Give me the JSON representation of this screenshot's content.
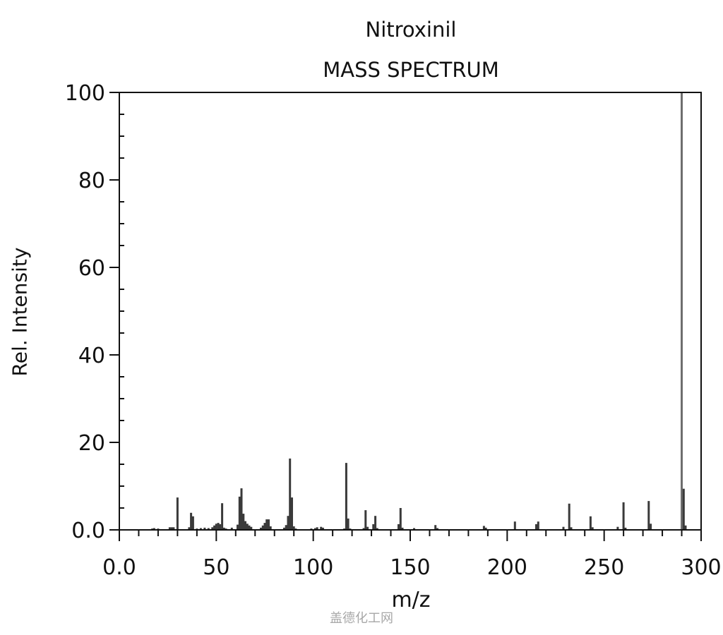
{
  "chart_data": {
    "type": "bar",
    "subtype": "mass-spectrum-stick",
    "title": "Nitroxinil",
    "subtitle": "MASS SPECTRUM",
    "xlabel": "m/z",
    "ylabel": "Rel. Intensity",
    "xlim": [
      0,
      300
    ],
    "ylim": [
      0,
      100
    ],
    "x_ticks": [
      0,
      50,
      100,
      150,
      200,
      250,
      300
    ],
    "x_tick_labels": [
      "0.0",
      "50",
      "100",
      "150",
      "200",
      "250",
      "300"
    ],
    "y_ticks": [
      0,
      20,
      40,
      60,
      80,
      100
    ],
    "y_tick_labels": [
      "0.0",
      "20",
      "40",
      "60",
      "80",
      "100"
    ],
    "grid": false,
    "legend": null,
    "base_peak": {
      "mz": 290,
      "intensity": 100
    },
    "peaks": [
      {
        "mz": 17,
        "intensity": 0.3
      },
      {
        "mz": 18,
        "intensity": 0.4
      },
      {
        "mz": 20,
        "intensity": 0.3
      },
      {
        "mz": 26,
        "intensity": 0.6
      },
      {
        "mz": 27,
        "intensity": 0.6
      },
      {
        "mz": 28,
        "intensity": 0.6
      },
      {
        "mz": 30,
        "intensity": 7.4
      },
      {
        "mz": 36,
        "intensity": 0.6
      },
      {
        "mz": 37,
        "intensity": 3.9
      },
      {
        "mz": 38,
        "intensity": 3.1
      },
      {
        "mz": 40,
        "intensity": 0.3
      },
      {
        "mz": 42,
        "intensity": 0.4
      },
      {
        "mz": 44,
        "intensity": 0.5
      },
      {
        "mz": 46,
        "intensity": 0.4
      },
      {
        "mz": 48,
        "intensity": 0.6
      },
      {
        "mz": 49,
        "intensity": 1.0
      },
      {
        "mz": 50,
        "intensity": 1.4
      },
      {
        "mz": 51,
        "intensity": 1.6
      },
      {
        "mz": 52,
        "intensity": 1.3
      },
      {
        "mz": 53,
        "intensity": 6.1
      },
      {
        "mz": 54,
        "intensity": 0.5
      },
      {
        "mz": 55,
        "intensity": 0.3
      },
      {
        "mz": 58,
        "intensity": 0.5
      },
      {
        "mz": 61,
        "intensity": 1.2
      },
      {
        "mz": 62,
        "intensity": 7.6
      },
      {
        "mz": 63,
        "intensity": 9.5
      },
      {
        "mz": 64,
        "intensity": 3.7
      },
      {
        "mz": 65,
        "intensity": 2.0
      },
      {
        "mz": 66,
        "intensity": 1.4
      },
      {
        "mz": 67,
        "intensity": 1.0
      },
      {
        "mz": 68,
        "intensity": 0.7
      },
      {
        "mz": 73,
        "intensity": 0.5
      },
      {
        "mz": 74,
        "intensity": 1.0
      },
      {
        "mz": 75,
        "intensity": 1.6
      },
      {
        "mz": 76,
        "intensity": 2.4
      },
      {
        "mz": 77,
        "intensity": 2.4
      },
      {
        "mz": 78,
        "intensity": 0.8
      },
      {
        "mz": 85,
        "intensity": 0.5
      },
      {
        "mz": 86,
        "intensity": 1.1
      },
      {
        "mz": 87,
        "intensity": 3.2
      },
      {
        "mz": 88,
        "intensity": 16.3
      },
      {
        "mz": 89,
        "intensity": 7.4
      },
      {
        "mz": 90,
        "intensity": 0.8
      },
      {
        "mz": 91,
        "intensity": 0.3
      },
      {
        "mz": 99,
        "intensity": 0.3
      },
      {
        "mz": 101,
        "intensity": 0.4
      },
      {
        "mz": 102,
        "intensity": 0.6
      },
      {
        "mz": 104,
        "intensity": 0.7
      },
      {
        "mz": 105,
        "intensity": 0.5
      },
      {
        "mz": 116,
        "intensity": 0.3
      },
      {
        "mz": 117,
        "intensity": 15.3
      },
      {
        "mz": 118,
        "intensity": 2.6
      },
      {
        "mz": 119,
        "intensity": 0.3
      },
      {
        "mz": 126,
        "intensity": 0.4
      },
      {
        "mz": 127,
        "intensity": 4.5
      },
      {
        "mz": 128,
        "intensity": 0.7
      },
      {
        "mz": 131,
        "intensity": 1.3
      },
      {
        "mz": 132,
        "intensity": 3.2
      },
      {
        "mz": 133,
        "intensity": 0.4
      },
      {
        "mz": 144,
        "intensity": 1.3
      },
      {
        "mz": 145,
        "intensity": 5.0
      },
      {
        "mz": 146,
        "intensity": 0.5
      },
      {
        "mz": 152,
        "intensity": 0.4
      },
      {
        "mz": 163,
        "intensity": 1.1
      },
      {
        "mz": 164,
        "intensity": 0.4
      },
      {
        "mz": 188,
        "intensity": 0.9
      },
      {
        "mz": 189,
        "intensity": 0.5
      },
      {
        "mz": 204,
        "intensity": 1.9
      },
      {
        "mz": 215,
        "intensity": 1.3
      },
      {
        "mz": 216,
        "intensity": 1.9
      },
      {
        "mz": 229,
        "intensity": 0.7
      },
      {
        "mz": 232,
        "intensity": 6.0
      },
      {
        "mz": 233,
        "intensity": 0.6
      },
      {
        "mz": 243,
        "intensity": 3.1
      },
      {
        "mz": 244,
        "intensity": 0.6
      },
      {
        "mz": 257,
        "intensity": 0.7
      },
      {
        "mz": 260,
        "intensity": 6.3
      },
      {
        "mz": 261,
        "intensity": 0.5
      },
      {
        "mz": 273,
        "intensity": 6.6
      },
      {
        "mz": 274,
        "intensity": 1.4
      },
      {
        "mz": 290,
        "intensity": 100
      },
      {
        "mz": 291,
        "intensity": 9.4
      },
      {
        "mz": 292,
        "intensity": 1.0
      }
    ]
  },
  "watermark": "盖德化工网",
  "colors": {
    "axis": "#111111",
    "peak": "#3a3a3a",
    "base_peak": "#6e6e6e",
    "watermark": "#a8a8a8"
  }
}
